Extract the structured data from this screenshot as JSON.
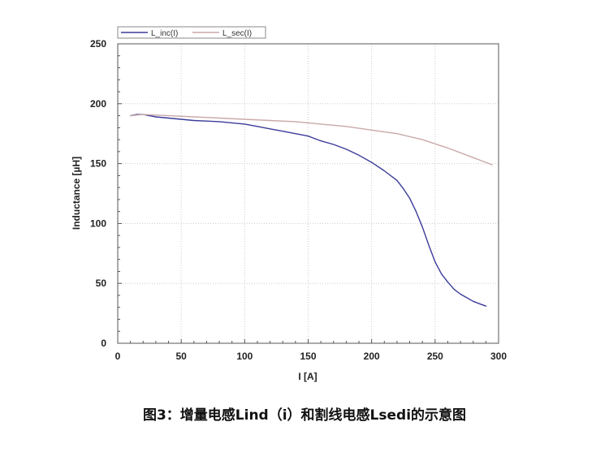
{
  "caption": "图3：增量电感Lind（i）和割线电感Lsedi的示意图",
  "colors": {
    "L_inc": "#3b3b9a",
    "L_sec": "#c9a9a9",
    "axis": "#555555",
    "grid": "#cccccc"
  },
  "chart_data": {
    "type": "line",
    "title": "",
    "xlabel": "I [A]",
    "ylabel": "Inductance [µH]",
    "xlim": [
      0,
      300
    ],
    "ylim": [
      0,
      250
    ],
    "xticks": [
      0,
      50,
      100,
      150,
      200,
      250,
      300
    ],
    "yticks": [
      0,
      50,
      100,
      150,
      200,
      250
    ],
    "grid": true,
    "legend_position": "top-left (above plot)",
    "series": [
      {
        "name": "L_inc(I)",
        "color": "#3b3b9a",
        "x": [
          10,
          15,
          20,
          25,
          30,
          40,
          50,
          60,
          70,
          80,
          90,
          100,
          110,
          120,
          130,
          140,
          150,
          160,
          170,
          180,
          190,
          200,
          210,
          220,
          225,
          230,
          235,
          240,
          245,
          250,
          255,
          260,
          265,
          270,
          275,
          280,
          285,
          290
        ],
        "y": [
          190,
          191,
          191,
          190,
          189,
          188,
          187,
          186,
          185.5,
          185,
          184,
          183,
          181,
          179,
          177,
          175,
          173,
          169,
          166,
          162,
          157,
          151,
          144,
          136,
          129,
          121,
          110,
          97,
          82,
          68,
          58,
          51,
          45,
          41,
          38,
          35,
          33,
          31
        ]
      },
      {
        "name": "L_sec(I)",
        "color": "#c9a9a9",
        "x": [
          10,
          20,
          40,
          60,
          80,
          100,
          120,
          140,
          160,
          180,
          200,
          220,
          240,
          260,
          280,
          290,
          295
        ],
        "y": [
          190,
          191,
          190,
          189,
          188,
          187,
          186,
          185,
          183,
          181,
          178,
          175,
          170,
          163,
          155,
          151,
          149
        ]
      }
    ]
  }
}
